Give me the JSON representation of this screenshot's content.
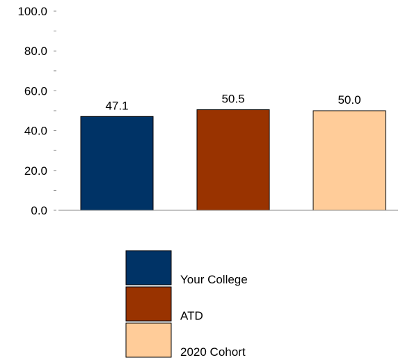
{
  "chart_data": {
    "type": "bar",
    "categories": [
      "Your College",
      "ATD",
      "2020 Cohort"
    ],
    "values": [
      47.1,
      50.5,
      50.0
    ],
    "value_labels": [
      "47.1",
      "50.5",
      "50.0"
    ],
    "colors": [
      "#003366",
      "#993300",
      "#FFCC99"
    ],
    "ylim": [
      0,
      100
    ],
    "y_major_ticks": [
      0,
      20,
      40,
      60,
      80,
      100
    ],
    "y_tick_labels": [
      "0.0",
      "20.0",
      "40.0",
      "60.0",
      "80.0",
      "100.0"
    ],
    "y_minor_ticks": [
      10,
      30,
      50,
      70,
      90
    ],
    "grid": false,
    "legend_placement": "bottom",
    "title": "",
    "xlabel": "",
    "ylabel": ""
  }
}
